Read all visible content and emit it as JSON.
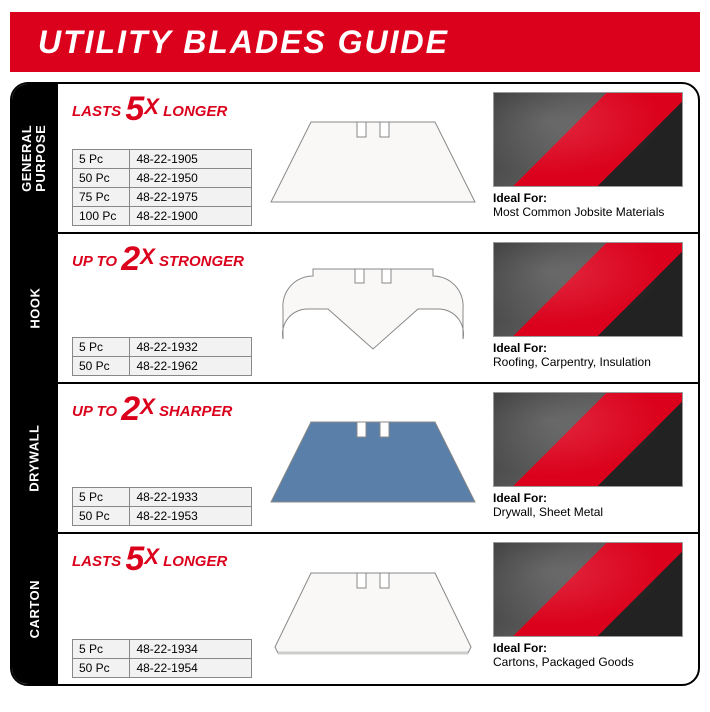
{
  "header": {
    "title": "UTILITY BLADES GUIDE"
  },
  "colors": {
    "brand_red": "#db011c",
    "black": "#000000",
    "white": "#ffffff",
    "table_bg": "#f2f2f2",
    "table_border": "#888888"
  },
  "ideal_label": "Ideal For:",
  "rows": [
    {
      "category": "GENERAL\nPURPOSE",
      "claim_prefix": "LASTS",
      "claim_number": "5",
      "claim_suffix": "LONGER",
      "blade_type": "standard",
      "blade_color": "#f9f8f6",
      "skus": [
        {
          "qty": "5 Pc",
          "sku": "48-22-1905"
        },
        {
          "qty": "50 Pc",
          "sku": "48-22-1950"
        },
        {
          "qty": "75 Pc",
          "sku": "48-22-1975"
        },
        {
          "qty": "100 Pc",
          "sku": "48-22-1900"
        }
      ],
      "ideal_for": "Most Common Jobsite Materials"
    },
    {
      "category": "HOOK",
      "claim_prefix": "UP TO",
      "claim_number": "2",
      "claim_suffix": "STRONGER",
      "blade_type": "hook",
      "blade_color": "#f9f8f6",
      "skus": [
        {
          "qty": "5 Pc",
          "sku": "48-22-1932"
        },
        {
          "qty": "50 Pc",
          "sku": "48-22-1962"
        }
      ],
      "ideal_for": "Roofing, Carpentry, Insulation"
    },
    {
      "category": "DRYWALL",
      "claim_prefix": "UP TO",
      "claim_number": "2",
      "claim_suffix": "SHARPER",
      "blade_type": "standard",
      "blade_color": "#5a7fa8",
      "skus": [
        {
          "qty": "5 Pc",
          "sku": "48-22-1933"
        },
        {
          "qty": "50 Pc",
          "sku": "48-22-1953"
        }
      ],
      "ideal_for": "Drywall, Sheet Metal"
    },
    {
      "category": "CARTON",
      "claim_prefix": "LASTS",
      "claim_number": "5",
      "claim_suffix": "LONGER",
      "blade_type": "carton",
      "blade_color": "#f9f8f6",
      "skus": [
        {
          "qty": "5 Pc",
          "sku": "48-22-1934"
        },
        {
          "qty": "50 Pc",
          "sku": "48-22-1954"
        }
      ],
      "ideal_for": "Cartons, Packaged Goods"
    }
  ]
}
